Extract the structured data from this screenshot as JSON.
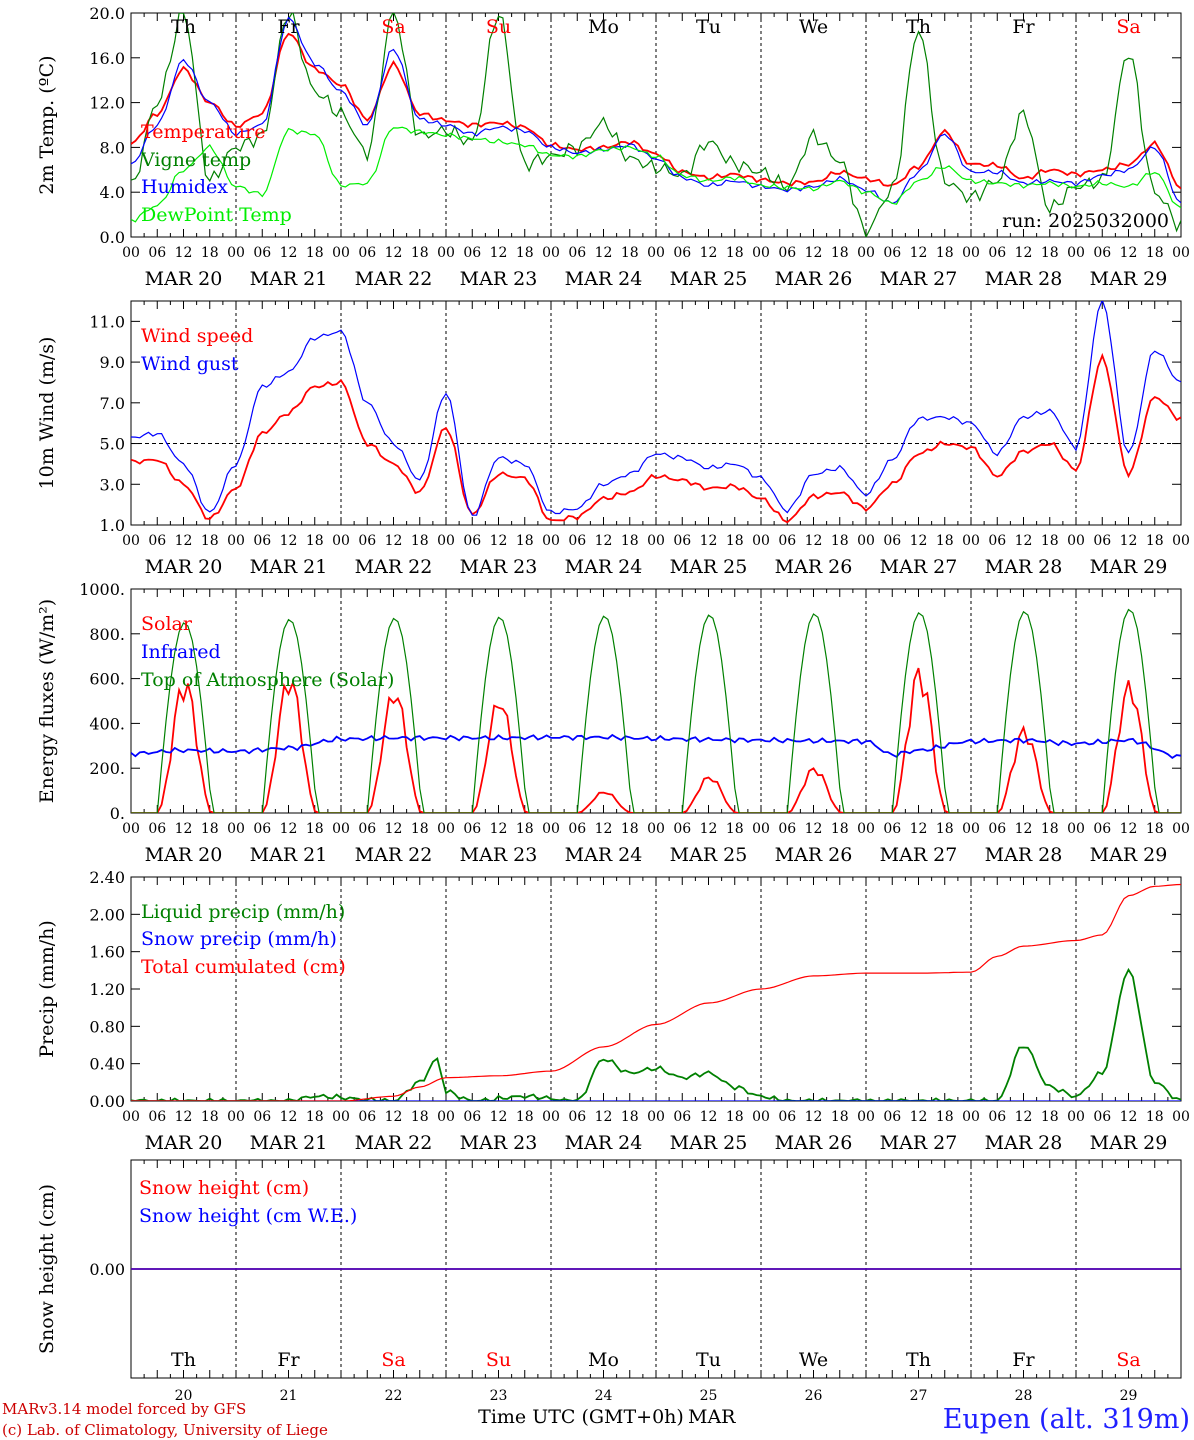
{
  "chart_data": [
    {
      "type": "line",
      "ylabel": "2m Temp. (ºC)",
      "ylim": [
        0,
        20
      ],
      "yticks": [
        "0.0",
        "4.0",
        "8.0",
        "12.0",
        "16.0",
        "20.0"
      ],
      "annotation": "run: 2025032000",
      "series": [
        {
          "name": "Temperature",
          "color": "#ff0000",
          "x": [
            0,
            6,
            12,
            18,
            24,
            30,
            36,
            42,
            48,
            54,
            60,
            66,
            72,
            78,
            84,
            90,
            96,
            102,
            108,
            114,
            120,
            126,
            132,
            138,
            144,
            150,
            156,
            162,
            168,
            174,
            180,
            186,
            192,
            198,
            204,
            210,
            216,
            222,
            228,
            234,
            240
          ],
          "values": [
            8.3,
            11,
            15,
            12,
            9.9,
            11,
            18.2,
            15,
            13.6,
            10.5,
            15.4,
            11,
            10.4,
            10,
            10.2,
            9.8,
            8.2,
            7.8,
            8,
            8.5,
            7.4,
            5.8,
            5.3,
            5.6,
            5.1,
            4.8,
            4.9,
            5.8,
            5.2,
            4.6,
            6.3,
            9.4,
            6.5,
            6.4,
            5.2,
            6,
            5.6,
            6,
            6.5,
            8.3,
            4.4
          ]
        },
        {
          "name": "Vigne temp",
          "color": "#008000",
          "x": [
            0,
            6,
            12,
            18,
            24,
            30,
            36,
            42,
            48,
            54,
            60,
            66,
            72,
            78,
            84,
            90,
            96,
            102,
            108,
            114,
            120,
            126,
            132,
            138,
            144,
            150,
            156,
            162,
            168,
            174,
            180,
            186,
            192,
            198,
            204,
            210,
            216,
            222,
            228,
            234,
            240
          ],
          "values": [
            4.5,
            12,
            20,
            5,
            8,
            9,
            20,
            13,
            11,
            7.5,
            20,
            9,
            9.5,
            8.5,
            20,
            6.5,
            7.2,
            8,
            10.2,
            7,
            6.2,
            5.5,
            8.5,
            6.5,
            5.8,
            4.5,
            9,
            6.8,
            0.5,
            4.2,
            18.5,
            5,
            3.5,
            5,
            11,
            2.5,
            4.5,
            5,
            16.5,
            4,
            1
          ]
        },
        {
          "name": "Humidex",
          "color": "#0000ff",
          "x": [
            0,
            6,
            12,
            18,
            24,
            30,
            36,
            42,
            48,
            54,
            60,
            66,
            72,
            78,
            84,
            90,
            96,
            102,
            108,
            114,
            120,
            126,
            132,
            138,
            144,
            150,
            156,
            162,
            168,
            174,
            180,
            186,
            192,
            198,
            204,
            210,
            216,
            222,
            228,
            234,
            240
          ],
          "values": [
            6.5,
            10,
            15.8,
            12,
            9.2,
            10,
            19.5,
            15.5,
            13,
            10,
            16.8,
            10.5,
            10,
            9.2,
            9.8,
            9.5,
            8,
            7.5,
            7.8,
            8.2,
            7,
            5.3,
            4.6,
            5,
            4.5,
            4.2,
            4.5,
            5.2,
            4.2,
            3,
            5.8,
            9.2,
            5.8,
            5.8,
            4.8,
            5,
            4.8,
            5.5,
            6,
            8,
            3
          ]
        },
        {
          "name": "DewPoint Temp",
          "color": "#00ee00",
          "x": [
            0,
            6,
            12,
            18,
            24,
            30,
            36,
            42,
            48,
            54,
            60,
            66,
            72,
            78,
            84,
            90,
            96,
            102,
            108,
            114,
            120,
            126,
            132,
            138,
            144,
            150,
            156,
            162,
            168,
            174,
            180,
            186,
            192,
            198,
            204,
            210,
            216,
            222,
            228,
            234,
            240
          ],
          "values": [
            1.5,
            2.8,
            6,
            8,
            4.5,
            3.8,
            9.5,
            9.2,
            4.6,
            4.8,
            9.8,
            9.4,
            9.1,
            8.8,
            8.5,
            8.2,
            7.3,
            7.2,
            7.8,
            8,
            7.2,
            5.5,
            5,
            5.3,
            4.6,
            4.4,
            4.3,
            5,
            4,
            3,
            5,
            6.3,
            5,
            4.8,
            4.6,
            4.8,
            4.5,
            4.8,
            4.5,
            5.8,
            2.5
          ]
        }
      ]
    },
    {
      "type": "line",
      "ylabel": "10m Wind (m/s)",
      "ylim": [
        1,
        12
      ],
      "yticks": [
        "1.0",
        "3.0",
        "5.0",
        "7.0",
        "9.0",
        "11.0"
      ],
      "reference_line": 5,
      "series": [
        {
          "name": "Wind speed",
          "color": "#ff0000",
          "x": [
            0,
            6,
            12,
            18,
            24,
            30,
            36,
            42,
            48,
            54,
            60,
            66,
            72,
            78,
            84,
            90,
            96,
            102,
            108,
            114,
            120,
            126,
            132,
            138,
            144,
            150,
            156,
            162,
            168,
            174,
            180,
            186,
            192,
            198,
            204,
            210,
            216,
            222,
            228,
            234,
            240
          ],
          "values": [
            4.1,
            4.2,
            3,
            1.3,
            2.8,
            5.5,
            6.5,
            7.8,
            8,
            5,
            4,
            2.6,
            5.8,
            1.5,
            3.5,
            3.3,
            1.2,
            1.4,
            2.3,
            2.6,
            3.4,
            3.2,
            2.8,
            2.9,
            2.3,
            1.2,
            2.4,
            2.6,
            1.8,
            3,
            4.5,
            5,
            4.8,
            3.4,
            4.6,
            5,
            3.7,
            9.2,
            3.5,
            7.3,
            6.2
          ]
        },
        {
          "name": "Wind gust",
          "color": "#0000ff",
          "x": [
            0,
            6,
            12,
            18,
            24,
            30,
            36,
            42,
            48,
            54,
            60,
            66,
            72,
            78,
            84,
            90,
            96,
            102,
            108,
            114,
            120,
            126,
            132,
            138,
            144,
            150,
            156,
            162,
            168,
            174,
            180,
            186,
            192,
            198,
            204,
            210,
            216,
            222,
            228,
            234,
            240
          ],
          "values": [
            5.3,
            5.5,
            4,
            1.6,
            4,
            7.8,
            8.5,
            10.2,
            10.5,
            7,
            5,
            3.2,
            7.5,
            1.4,
            4.3,
            4,
            1.6,
            1.8,
            3,
            3.5,
            4.5,
            4.3,
            3.8,
            4,
            3.3,
            1.7,
            3.5,
            3.8,
            2.5,
            4.2,
            6.2,
            6.3,
            6,
            4.5,
            6.3,
            6.6,
            4.8,
            12,
            4.5,
            9.6,
            8
          ]
        }
      ]
    },
    {
      "type": "line",
      "ylabel": "Energy fluxes (W/m²)",
      "ylim": [
        0,
        1000
      ],
      "yticks": [
        "0.",
        "200.",
        "400.",
        "600.",
        "800.",
        "1000."
      ],
      "series": [
        {
          "name": "Solar",
          "color": "#ff0000",
          "peaks": [
            620,
            635,
            570,
            530,
            100,
            170,
            210,
            670,
            390,
            600
          ]
        },
        {
          "name": "Infrared",
          "color": "#0000ff",
          "x": [
            0,
            12,
            24,
            36,
            48,
            60,
            72,
            84,
            96,
            108,
            120,
            132,
            144,
            156,
            168,
            174,
            180,
            192,
            204,
            216,
            228,
            240
          ],
          "values": [
            265,
            280,
            275,
            290,
            330,
            335,
            335,
            335,
            338,
            338,
            332,
            328,
            325,
            322,
            320,
            260,
            280,
            320,
            325,
            310,
            325,
            250
          ]
        },
        {
          "name": "Top of Atmosphere (Solar)",
          "color": "#008000",
          "peaks": [
            850,
            865,
            870,
            875,
            880,
            885,
            890,
            895,
            900,
            910
          ]
        }
      ]
    },
    {
      "type": "line",
      "ylabel": "Precip (mm/h)",
      "ylim": [
        0,
        2.4
      ],
      "yticks": [
        "0.00",
        "0.40",
        "0.80",
        "1.20",
        "1.60",
        "2.00",
        "2.40"
      ],
      "series": [
        {
          "name": "Liquid precip (mm/h)",
          "color": "#008000",
          "x": [
            0,
            36,
            42,
            60,
            66,
            70,
            72,
            78,
            90,
            102,
            108,
            114,
            120,
            126,
            132,
            138,
            144,
            150,
            168,
            198,
            204,
            210,
            216,
            222,
            228,
            234,
            240
          ],
          "values": [
            0,
            0,
            0.05,
            0,
            0.2,
            0.45,
            0.1,
            0,
            0.05,
            0,
            0.45,
            0.3,
            0.35,
            0.25,
            0.3,
            0.15,
            0.05,
            0,
            0,
            0,
            0.6,
            0.15,
            0.05,
            0.3,
            1.4,
            0.2,
            0
          ]
        },
        {
          "name": "Snow precip (mm/h)",
          "color": "#0000ff",
          "x": [
            0,
            240
          ],
          "values": [
            0,
            0
          ]
        },
        {
          "name": "Total cumulated (cm)",
          "color": "#ff0000",
          "x": [
            0,
            48,
            60,
            66,
            72,
            84,
            96,
            108,
            120,
            132,
            144,
            156,
            168,
            180,
            192,
            198,
            204,
            216,
            222,
            228,
            234,
            240
          ],
          "values": [
            0,
            0,
            0.05,
            0.15,
            0.25,
            0.27,
            0.32,
            0.58,
            0.82,
            1.05,
            1.2,
            1.34,
            1.37,
            1.37,
            1.38,
            1.55,
            1.66,
            1.72,
            1.78,
            2.2,
            2.3,
            2.32
          ]
        }
      ]
    },
    {
      "type": "line",
      "ylabel": "Snow height (cm)",
      "ytick": "0.00",
      "series": [
        {
          "name": "Snow height (cm)",
          "color": "#ff0000",
          "values": [
            0,
            0
          ]
        },
        {
          "name": "Snow height (cm W.E.)",
          "color": "#0000ff",
          "values": [
            0,
            0
          ]
        }
      ]
    }
  ],
  "hour_labels": [
    "00",
    "06",
    "12",
    "18"
  ],
  "final_hour": "00",
  "dates": [
    "MAR 20",
    "MAR 21",
    "MAR 22",
    "MAR 23",
    "MAR 24",
    "MAR 25",
    "MAR 26",
    "MAR 27",
    "MAR 28",
    "MAR 29"
  ],
  "days": [
    {
      "label": "Th",
      "color": "#000000"
    },
    {
      "label": "Fr",
      "color": "#000000"
    },
    {
      "label": "Sa",
      "color": "#ff0000"
    },
    {
      "label": "Su",
      "color": "#ff0000"
    },
    {
      "label": "Mo",
      "color": "#000000"
    },
    {
      "label": "Tu",
      "color": "#000000"
    },
    {
      "label": "We",
      "color": "#000000"
    },
    {
      "label": "Th",
      "color": "#000000"
    },
    {
      "label": "Fr",
      "color": "#000000"
    },
    {
      "label": "Sa",
      "color": "#ff0000"
    }
  ],
  "day_numbers": [
    "20",
    "21",
    "22",
    "23",
    "24",
    "25",
    "26",
    "27",
    "28",
    "29"
  ],
  "xlabel": "Time UTC (GMT+0h)",
  "month": "MAR",
  "footer": {
    "model": "MARv3.14 model forced by GFS",
    "copyright": "(c) Lab. of Climatology, University of Liege",
    "station": "Eupen (alt. 319m)"
  }
}
